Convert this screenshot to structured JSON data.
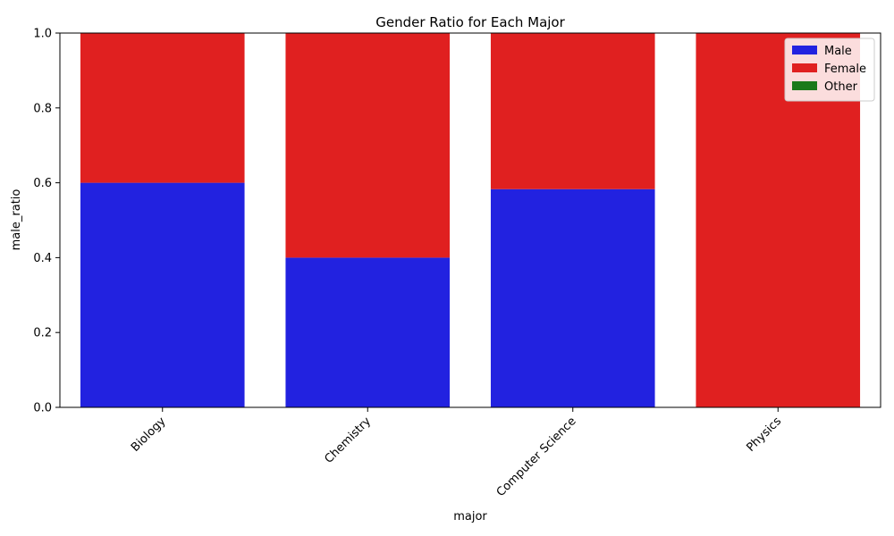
{
  "chart_data": {
    "type": "bar",
    "stacked": true,
    "title": "Gender Ratio for Each Major",
    "xlabel": "major",
    "ylabel": "male_ratio",
    "categories": [
      "Biology",
      "Chemistry",
      "Computer Science",
      "Physics"
    ],
    "ylim": [
      0,
      1
    ],
    "yticks": [
      "0.0",
      "0.2",
      "0.4",
      "0.6",
      "0.8",
      "1.0"
    ],
    "series": [
      {
        "name": "Male",
        "color": "#2222e0",
        "values": [
          0.6,
          0.4,
          0.583,
          0.0
        ]
      },
      {
        "name": "Female",
        "color": "#e02020",
        "values": [
          0.4,
          0.6,
          0.417,
          1.0
        ]
      },
      {
        "name": "Other",
        "color": "#1a7a1a",
        "values": [
          0,
          0,
          0,
          0
        ]
      }
    ],
    "legend_position": "top-right",
    "grid": false
  }
}
